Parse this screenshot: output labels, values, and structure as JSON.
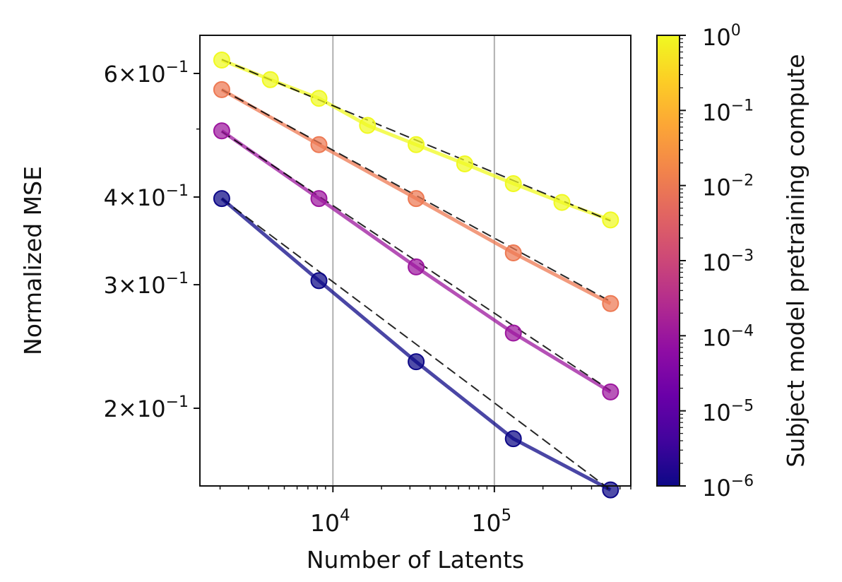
{
  "chart_data": {
    "type": "line",
    "title": "",
    "xlabel": "Number of Latents",
    "ylabel": "Normalized MSE",
    "xscale": "log",
    "yscale": "log",
    "xlim": [
      1500,
      700000
    ],
    "ylim": [
      0.155,
      0.68
    ],
    "grid": "vertical gridlines at major x ticks",
    "x_ticks": [
      {
        "value": 10000,
        "base": "10",
        "exp": "4"
      },
      {
        "value": 100000,
        "base": "10",
        "exp": "5"
      }
    ],
    "y_ticks": [
      {
        "value": 0.2,
        "mantissa": "2",
        "times": "×",
        "base": "10",
        "exp": "−1"
      },
      {
        "value": 0.3,
        "mantissa": "3",
        "times": "×",
        "base": "10",
        "exp": "−1"
      },
      {
        "value": 0.4,
        "mantissa": "4",
        "times": "×",
        "base": "10",
        "exp": "−1"
      },
      {
        "value": 0.6,
        "mantissa": "6",
        "times": "×",
        "base": "10",
        "exp": "−1"
      }
    ],
    "series": [
      {
        "color": "#0d0887",
        "compute": 1e-06,
        "points": [
          [
            2048,
            0.398
          ],
          [
            8192,
            0.304
          ],
          [
            32768,
            0.233
          ],
          [
            131072,
            0.181
          ],
          [
            524288,
            0.153
          ]
        ],
        "fit": [
          [
            2048,
            0.398
          ],
          [
            524288,
            0.153
          ]
        ]
      },
      {
        "color": "#9c179e",
        "compute": 0.0003,
        "points": [
          [
            2048,
            0.497
          ],
          [
            8192,
            0.398
          ],
          [
            32768,
            0.318
          ],
          [
            131072,
            0.256
          ],
          [
            524288,
            0.211
          ]
        ],
        "fit": [
          [
            2048,
            0.496
          ],
          [
            524288,
            0.212
          ]
        ]
      },
      {
        "color": "#ed7953",
        "compute": 0.01,
        "points": [
          [
            2048,
            0.569
          ],
          [
            8192,
            0.475
          ],
          [
            32768,
            0.398
          ],
          [
            131072,
            0.333
          ],
          [
            524288,
            0.282
          ]
        ],
        "fit": [
          [
            2048,
            0.569
          ],
          [
            524288,
            0.284
          ]
        ]
      },
      {
        "color": "#f0f921",
        "compute": 1,
        "points": [
          [
            2048,
            0.627
          ],
          [
            4096,
            0.588
          ],
          [
            8192,
            0.553
          ],
          [
            16384,
            0.506
          ],
          [
            32768,
            0.475
          ],
          [
            65536,
            0.446
          ],
          [
            131072,
            0.418
          ],
          [
            262144,
            0.393
          ],
          [
            524288,
            0.371
          ]
        ],
        "fit": [
          [
            2048,
            0.628
          ],
          [
            524288,
            0.37
          ]
        ]
      }
    ],
    "colorbar": {
      "label": "Subject model pretraining compute",
      "scale": "log",
      "range": [
        1e-06,
        1
      ],
      "colormap": "plasma",
      "ticks": [
        {
          "value": 1e-06,
          "base": "10",
          "exp": "−6"
        },
        {
          "value": 1e-05,
          "base": "10",
          "exp": "−5"
        },
        {
          "value": 0.0001,
          "base": "10",
          "exp": "−4"
        },
        {
          "value": 0.001,
          "base": "10",
          "exp": "−3"
        },
        {
          "value": 0.01,
          "base": "10",
          "exp": "−2"
        },
        {
          "value": 0.1,
          "base": "10",
          "exp": "−1"
        },
        {
          "value": 1,
          "base": "10",
          "exp": "0"
        }
      ],
      "stops": [
        "#0d0887",
        "#41049d",
        "#6a00a8",
        "#8f0da4",
        "#b12a90",
        "#cc4778",
        "#e16462",
        "#f2844b",
        "#fca636",
        "#fcce25",
        "#f0f921"
      ]
    },
    "fit_style": "dashed black"
  }
}
